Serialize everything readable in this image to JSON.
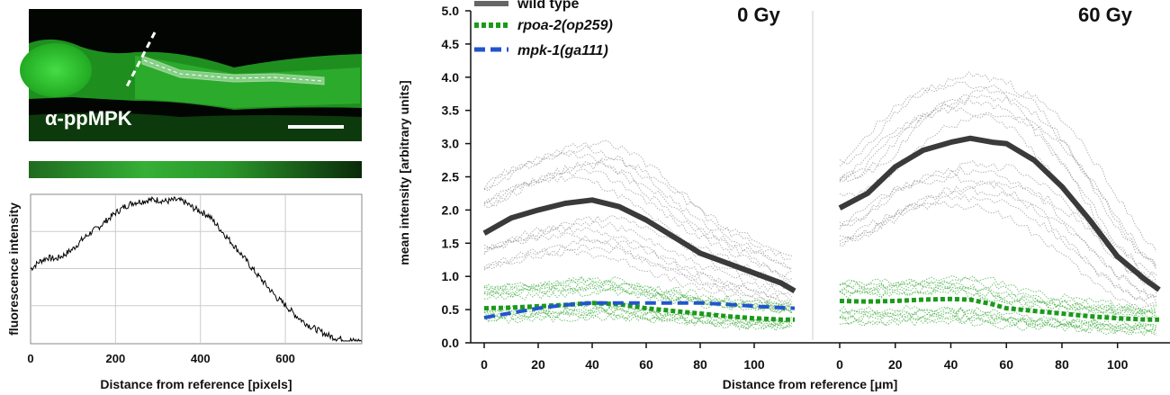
{
  "figure": {
    "micrograph_label": "α-ppMPK",
    "profile_ylabel": "fluorescence intensity",
    "profile_xlabel": "Distance from reference [pixels]",
    "profile_xticks": [
      "0",
      "200",
      "400",
      "600"
    ],
    "main_ylabel": "mean intensity [arbitrary units]",
    "main_xlabel": "Distance from reference [μm]",
    "panel_left_title": "0 Gy",
    "panel_right_title": "60 Gy"
  },
  "legend": {
    "items": [
      {
        "label": "wild type",
        "color": "#555555",
        "style": "solid"
      },
      {
        "label": "rpoa-2(op259)",
        "color": "#1a9a1a",
        "style": "dotted"
      },
      {
        "label": "mpk-1(ga111)",
        "color": "#2255cc",
        "style": "dashed"
      }
    ]
  },
  "chart_data": [
    {
      "type": "line",
      "title": "",
      "xlabel": "Distance from reference [pixels]",
      "ylabel": "fluorescence intensity",
      "xlim": [
        0,
        780
      ],
      "xticks": [
        0,
        200,
        400,
        600
      ],
      "series": [
        {
          "x": [
            0,
            20,
            40,
            60,
            80,
            100,
            120,
            140,
            160,
            180,
            200,
            220,
            240,
            260,
            280,
            300,
            320,
            340,
            360,
            380,
            400,
            420,
            440,
            460,
            480,
            500,
            520,
            540,
            560,
            580,
            600,
            620,
            640,
            660,
            680,
            700,
            720,
            740,
            760,
            780
          ],
          "y": [
            0.5,
            0.55,
            0.58,
            0.57,
            0.6,
            0.64,
            0.7,
            0.75,
            0.79,
            0.84,
            0.89,
            0.93,
            0.96,
            0.97,
            0.98,
            0.98,
            0.97,
            0.98,
            0.97,
            0.93,
            0.9,
            0.87,
            0.8,
            0.73,
            0.66,
            0.59,
            0.51,
            0.44,
            0.37,
            0.3,
            0.25,
            0.19,
            0.14,
            0.1,
            0.07,
            0.04,
            0.02,
            0.01,
            0.0,
            0.0
          ]
        }
      ]
    },
    {
      "type": "line",
      "title": "0 Gy",
      "xlabel": "Distance from reference [μm]",
      "ylabel": "mean intensity [arbitrary units]",
      "ylim": [
        0,
        5
      ],
      "yticks": [
        "0.0",
        "0.5",
        "1.0",
        "1.5",
        "2.0",
        "2.5",
        "3.0",
        "3.5",
        "4.0",
        "4.5",
        "5.0"
      ],
      "xticks": [
        0,
        20,
        40,
        60,
        80,
        100
      ],
      "x": [
        0,
        10,
        20,
        30,
        40,
        50,
        60,
        70,
        80,
        90,
        100,
        110,
        115
      ],
      "series": [
        {
          "name": "wild type",
          "values": [
            1.65,
            1.88,
            2.0,
            2.1,
            2.15,
            2.05,
            1.85,
            1.6,
            1.35,
            1.2,
            1.05,
            0.9,
            0.78
          ]
        },
        {
          "name": "rpoa-2(op259)",
          "values": [
            0.52,
            0.53,
            0.55,
            0.57,
            0.6,
            0.58,
            0.52,
            0.48,
            0.44,
            0.4,
            0.37,
            0.35,
            0.35
          ]
        },
        {
          "name": "mpk-1(ga111)",
          "values": [
            0.38,
            0.45,
            0.52,
            0.57,
            0.6,
            0.6,
            0.6,
            0.6,
            0.6,
            0.58,
            0.55,
            0.53,
            0.52
          ]
        }
      ]
    },
    {
      "type": "line",
      "title": "60 Gy",
      "xlabel": "Distance from reference [μm]",
      "ylim": [
        0,
        5
      ],
      "xticks": [
        0,
        20,
        40,
        60,
        80,
        100
      ],
      "x": [
        0,
        10,
        20,
        30,
        40,
        47,
        55,
        60,
        70,
        80,
        90,
        100,
        110,
        115
      ],
      "series": [
        {
          "name": "wild type",
          "values": [
            2.03,
            2.25,
            2.65,
            2.9,
            3.02,
            3.08,
            3.02,
            3.0,
            2.75,
            2.35,
            1.85,
            1.3,
            0.95,
            0.8
          ]
        },
        {
          "name": "rpoa-2(op259)",
          "values": [
            0.63,
            0.62,
            0.63,
            0.65,
            0.66,
            0.65,
            0.58,
            0.52,
            0.48,
            0.44,
            0.4,
            0.37,
            0.35,
            0.35
          ]
        }
      ]
    }
  ]
}
